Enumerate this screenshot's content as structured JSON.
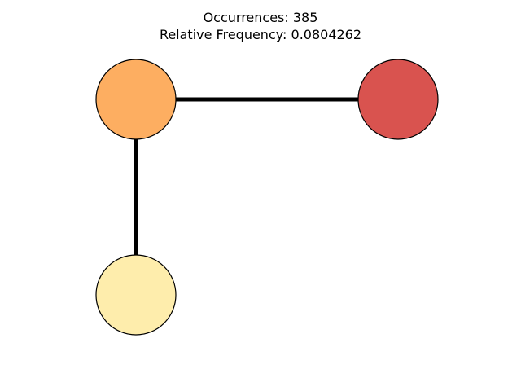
{
  "title": {
    "occurrences": "Occurrences: 385",
    "relative_frequency": "Relative Frequency: 0.0804262"
  },
  "graph": {
    "nodes": [
      {
        "id": "node-top-left",
        "color": "#FDAE61"
      },
      {
        "id": "node-top-right",
        "color": "#D9534F"
      },
      {
        "id": "node-bottom-left",
        "color": "#FEEDAC"
      }
    ],
    "edges": [
      {
        "from": "node-top-left",
        "to": "node-top-right"
      },
      {
        "from": "node-top-left",
        "to": "node-bottom-left"
      }
    ]
  }
}
